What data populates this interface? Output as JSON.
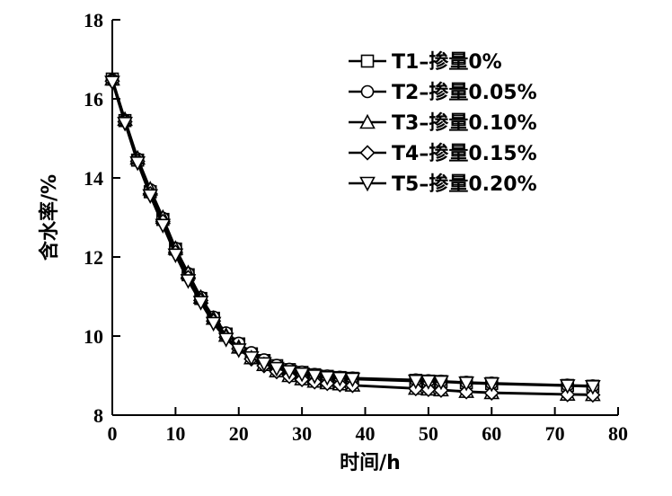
{
  "chart_data": {
    "type": "line",
    "title": "",
    "xlabel": "时间/h",
    "ylabel": "含水率/%",
    "xlim": [
      0,
      80
    ],
    "ylim": [
      8,
      18
    ],
    "xticks": [
      0,
      10,
      20,
      30,
      40,
      50,
      60,
      70,
      80
    ],
    "yticks": [
      8,
      10,
      12,
      14,
      16,
      18
    ],
    "grid": false,
    "legend_position": "top-right",
    "x": [
      0,
      2,
      4,
      6,
      8,
      10,
      12,
      14,
      16,
      18,
      20,
      22,
      24,
      26,
      28,
      30,
      32,
      34,
      36,
      38,
      48,
      50,
      52,
      56,
      60,
      72,
      76
    ],
    "series": [
      {
        "name": "T1–掺量0%",
        "marker": "square",
        "values": [
          16.5,
          15.45,
          14.45,
          13.65,
          12.95,
          12.2,
          11.55,
          10.95,
          10.45,
          10.05,
          9.8,
          9.55,
          9.38,
          9.25,
          9.15,
          9.08,
          9.02,
          8.98,
          8.95,
          8.93,
          8.88,
          8.86,
          8.85,
          8.82,
          8.8,
          8.75,
          8.73
        ]
      },
      {
        "name": "T2–掺量0.05%",
        "marker": "circle",
        "values": [
          16.48,
          15.45,
          14.48,
          13.7,
          12.98,
          12.22,
          11.58,
          10.98,
          10.48,
          10.08,
          9.82,
          9.58,
          9.4,
          9.26,
          9.16,
          9.09,
          9.03,
          8.99,
          8.96,
          8.94,
          8.89,
          8.87,
          8.86,
          8.83,
          8.81,
          8.76,
          8.74
        ]
      },
      {
        "name": "T3–掺量0.10%",
        "marker": "triangle-up",
        "values": [
          16.5,
          15.48,
          14.5,
          13.72,
          13.0,
          12.22,
          11.6,
          10.98,
          10.45,
          10.02,
          9.72,
          9.45,
          9.28,
          9.12,
          9.0,
          8.92,
          8.86,
          8.82,
          8.79,
          8.76,
          8.68,
          8.66,
          8.64,
          8.6,
          8.57,
          8.53,
          8.52
        ]
      },
      {
        "name": "T4–掺量0.15%",
        "marker": "diamond",
        "values": [
          16.45,
          15.42,
          14.42,
          13.6,
          12.9,
          12.12,
          11.48,
          10.9,
          10.38,
          9.97,
          9.68,
          9.42,
          9.25,
          9.1,
          8.98,
          8.9,
          8.84,
          8.8,
          8.77,
          8.75,
          8.67,
          8.65,
          8.63,
          8.59,
          8.56,
          8.52,
          8.51
        ]
      },
      {
        "name": "T5–掺量0.20%",
        "marker": "triangle-down",
        "values": [
          16.42,
          15.38,
          14.38,
          13.55,
          12.8,
          12.05,
          11.4,
          10.85,
          10.32,
          9.92,
          9.65,
          9.45,
          9.3,
          9.18,
          9.1,
          9.04,
          8.99,
          8.95,
          8.93,
          8.91,
          8.86,
          8.85,
          8.84,
          8.81,
          8.79,
          8.74,
          8.72
        ]
      }
    ]
  }
}
